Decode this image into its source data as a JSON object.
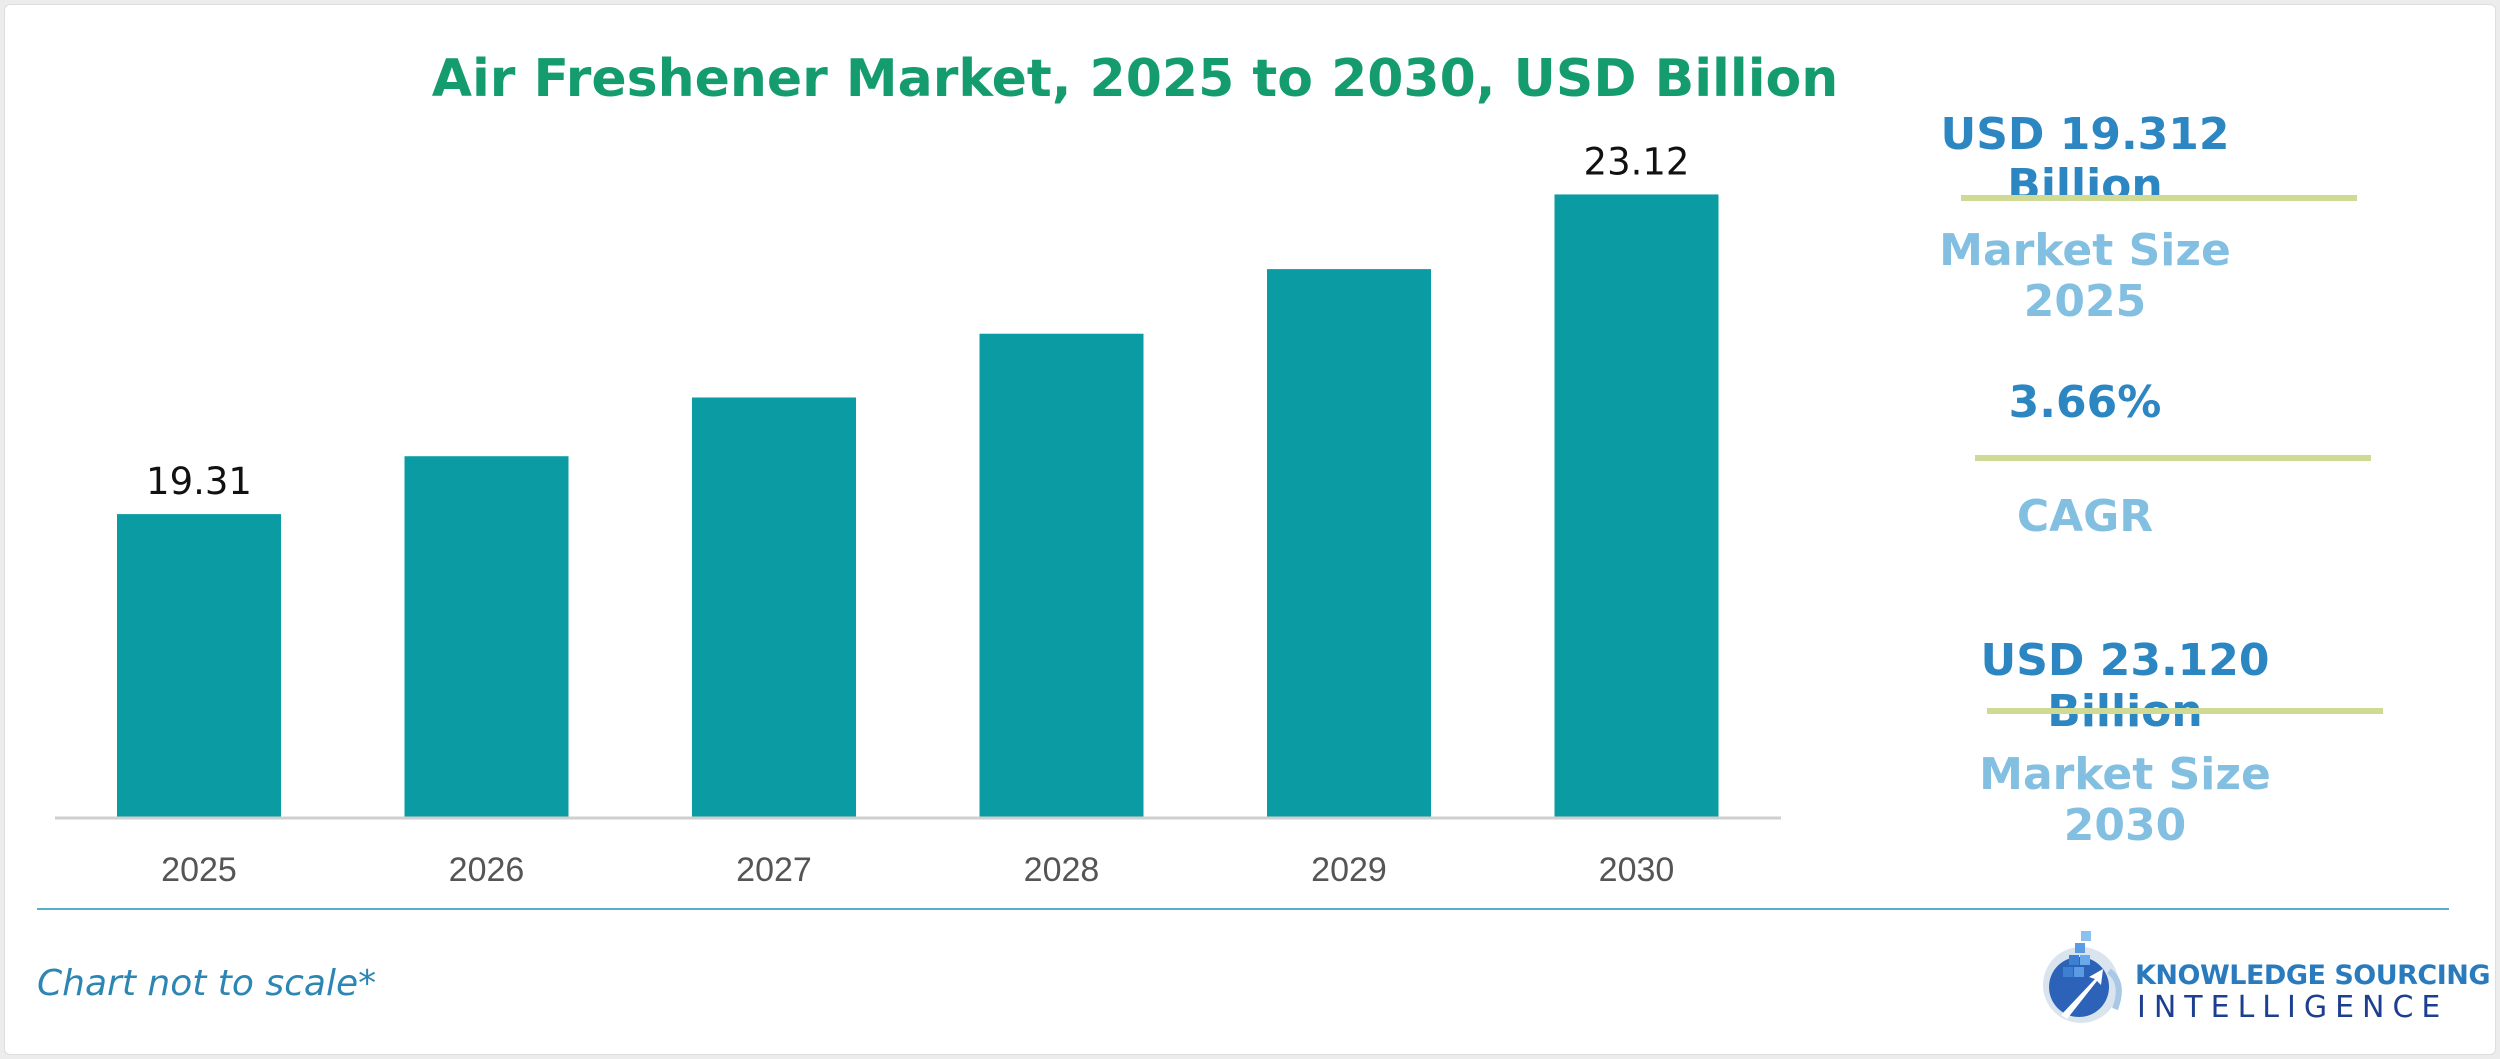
{
  "colors": {
    "title": "#149b6e",
    "bar": "#0a9ca2",
    "axis": "#cfcfcf",
    "tick_label": "#555555",
    "data_label": "#111111",
    "stat_value": "#2c86c1",
    "stat_label": "#82bfe1",
    "stat_rule": "#cfdb95",
    "bottom_rule": "#5aaec7",
    "footnote": "#2c86b4"
  },
  "chart_data": {
    "type": "bar",
    "title": "Air Freshener Market, 2025 to 2030, USD Billion",
    "categories": [
      "2025",
      "2026",
      "2027",
      "2028",
      "2029",
      "2030"
    ],
    "values": [
      19.31,
      20.0,
      20.7,
      21.46,
      22.23,
      23.12
    ],
    "data_labels": [
      "19.31",
      "",
      "",
      "",
      "",
      "23.12"
    ],
    "xlabel": "",
    "ylabel": "",
    "ylim": [
      15.7,
      23.9
    ],
    "grid": false,
    "legend": "none"
  },
  "stats": [
    {
      "value": "USD 19.312 Billion",
      "label": "Market Size 2025"
    },
    {
      "value": "3.66%",
      "label": "CAGR"
    },
    {
      "value": "USD 23.120 Billion",
      "label": "Market Size 2030"
    }
  ],
  "footnote": "Chart not to scale*",
  "logo": {
    "name": "knowledge-sourcing-intelligence-logo",
    "line1": "KNOWLEDGE SOURCING",
    "line2": "INTELLIGENCE"
  }
}
